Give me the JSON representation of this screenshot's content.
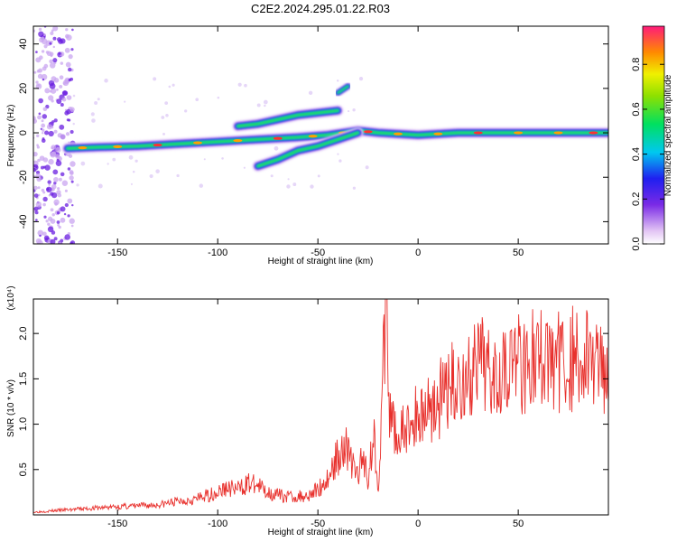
{
  "chart_data": [
    {
      "type": "heatmap",
      "title": "C2E2.2024.295.01.22.R03",
      "xlabel": "Height of straight line (km)",
      "ylabel": "Frequency (Hz)",
      "xlim": [
        -192,
        95
      ],
      "ylim": [
        -50,
        48
      ],
      "xticks": [
        -150,
        -100,
        -50,
        0,
        50
      ],
      "yticks": [
        -40,
        -20,
        0,
        20,
        40
      ],
      "colorbar": {
        "label": "Normalized spectral amplitude",
        "range": [
          0,
          0.97
        ],
        "ticks": [
          0.0,
          0.2,
          0.4,
          0.6,
          0.8
        ],
        "tick_labels": [
          "0.0",
          "0.2",
          "0.4",
          "0.6",
          "0.8"
        ]
      },
      "ridges": [
        {
          "x": [
            -175,
            -160,
            -140,
            -120,
            -100,
            -80,
            -60,
            -45,
            -30,
            -20,
            0,
            20,
            40,
            60,
            80,
            95
          ],
          "y": [
            -7,
            -6.5,
            -6,
            -5,
            -4,
            -3,
            -2,
            -1,
            1,
            0,
            -1,
            0,
            0,
            0,
            0,
            0
          ]
        },
        {
          "x": [
            -90,
            -80,
            -70,
            -60,
            -50,
            -40
          ],
          "y": [
            3,
            4,
            6,
            8,
            9,
            10
          ]
        },
        {
          "x": [
            -80,
            -70,
            -60,
            -50,
            -40,
            -30
          ],
          "y": [
            -15,
            -12,
            -8,
            -6,
            -3,
            0
          ]
        },
        {
          "x": [
            -40,
            -35
          ],
          "y": [
            18,
            21
          ]
        }
      ]
    },
    {
      "type": "line",
      "xlabel": "Height of straight line (km)",
      "ylabel": "SNR (10 * v/v)",
      "y_multiplier": "(x10⁴)",
      "xlim": [
        -192,
        95
      ],
      "ylim": [
        0,
        23800
      ],
      "xticks": [
        -150,
        -100,
        -50,
        0,
        50
      ],
      "yticks": [
        5000,
        10000,
        15000,
        20000
      ],
      "ytick_labels": [
        "0.5",
        "1.0",
        "1.5",
        "2.0"
      ],
      "color": "#e8302c",
      "series": [
        {
          "x": [
            -192,
            -180,
            -165,
            -150,
            -140,
            -130,
            -120,
            -110,
            -100,
            -95,
            -90,
            -85,
            -80,
            -75,
            -70,
            -65,
            -60,
            -55,
            -50,
            -45,
            -40,
            -37,
            -35,
            -32,
            -30,
            -27,
            -25,
            -22,
            -20,
            -18,
            -16,
            -14,
            -12,
            -10,
            -5,
            0,
            5,
            10,
            15,
            20,
            25,
            30,
            35,
            40,
            50,
            60,
            70,
            80,
            90,
            95
          ],
          "y": [
            300,
            500,
            700,
            900,
            1000,
            1100,
            1500,
            1800,
            2500,
            3000,
            2800,
            3500,
            3200,
            2500,
            2200,
            2000,
            2000,
            2200,
            2800,
            4000,
            6500,
            8000,
            7000,
            5000,
            4500,
            6500,
            4000,
            9000,
            3000,
            12000,
            23500,
            10000,
            10000,
            8500,
            9500,
            11000,
            12000,
            12500,
            14000,
            14500,
            15000,
            16000,
            16500,
            17000,
            17000,
            17200,
            17000,
            17200,
            17000,
            16800
          ]
        }
      ]
    }
  ]
}
